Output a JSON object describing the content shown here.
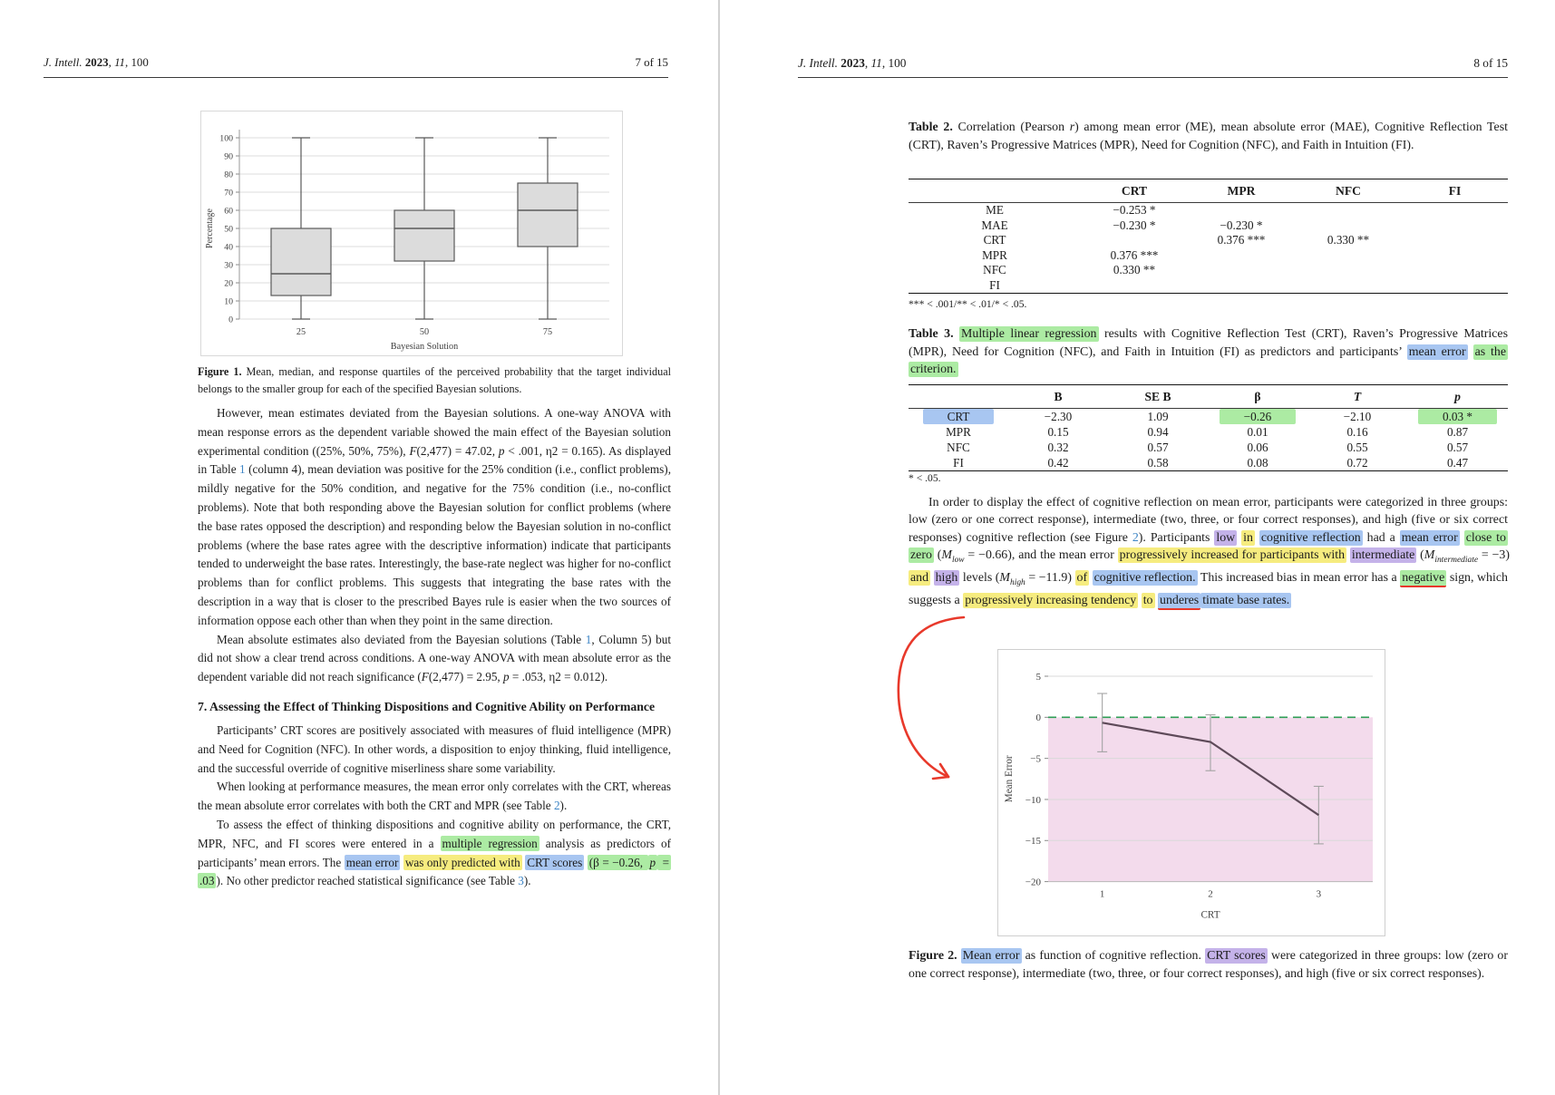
{
  "colors": {
    "highlight_yellow": "#F6EC7F",
    "highlight_green": "#ACEBA3",
    "highlight_blue": "#A8C6F1",
    "highlight_purple": "#C4B2E9",
    "annotation_red": "#E8392B",
    "link_blue": "#3D85C6"
  },
  "left": {
    "header": {
      "journal": [
        {
          "t": "J. Intell. ",
          "s": "i"
        },
        {
          "t": "2023",
          "s": "b"
        },
        ", ",
        {
          "t": "11",
          "s": "i"
        },
        ", 100"
      ],
      "page_label": "7 of 15"
    },
    "figure1_caption": [
      {
        "t": "Figure 1.",
        "s": "b"
      },
      " Mean, median, and response quartiles of the perceived probability that the target individual belongs to the smaller group for each of the specified Bayesian solutions."
    ],
    "para1": [
      "However, mean estimates deviated from the Bayesian solutions. A one-way ANOVA with mean response errors as the dependent variable showed the main effect of the Bayesian solution experimental condition ((25%, 50%, 75%), ",
      {
        "t": "F",
        "s": "i"
      },
      "(2,477) = 47.02, ",
      {
        "t": "p",
        "s": "i"
      },
      " < .001, η2 = 0.165). As displayed in Table ",
      {
        "t": "1",
        "s": "link"
      },
      " (column 4), mean deviation was positive for the 25% condition (i.e., conflict problems), mildly negative for the 50% condition, and negative for the 75% condition (i.e., no-conflict problems). Note that both responding above the Bayesian solution for conflict problems (where the base rates opposed the description) and responding below the Bayesian solution in no-conflict problems (where the base rates agree with the descriptive information) indicate that participants tended to underweight the base rates. Interestingly, the base-rate neglect was higher for no-conflict problems than for conflict problems. This suggests that integrating the base rates with the description in a way that is closer to the prescribed Bayes rule is easier when the two sources of information oppose each other than when they point in the same direction."
    ],
    "para2": [
      "Mean absolute estimates also deviated from the Bayesian solutions (Table ",
      {
        "t": "1",
        "s": "link"
      },
      ", Column 5) but did not show a clear trend across conditions. A one-way ANOVA with mean absolute error as the dependent variable did not reach significance (",
      {
        "t": "F",
        "s": "i"
      },
      "(2,477) = 2.95, ",
      {
        "t": "p",
        "s": "i"
      },
      " = .053, η2 = 0.012)."
    ],
    "section_heading": "7. Assessing the Effect of Thinking Dispositions and Cognitive Ability on Performance",
    "para3": [
      "Participants’ CRT scores are positively associated with measures of fluid intelligence (MPR) and Need for Cognition (NFC). In other words, a disposition to enjoy thinking, fluid intelligence, and the successful override of cognitive miserliness share some variability."
    ],
    "para4": [
      "When looking at performance measures, the mean error only correlates with the CRT, whereas the mean absolute error correlates with both the CRT and MPR (see Table ",
      {
        "t": "2",
        "s": "link"
      },
      ")."
    ],
    "para5": [
      "To assess the effect of thinking dispositions and cognitive ability on performance, the CRT, MPR, NFC, and FI scores were entered in a ",
      {
        "t": "multiple regression",
        "s": "g"
      },
      " analysis as predictors of participants’ mean errors. The ",
      {
        "t": "mean error",
        "s": "bl"
      },
      " ",
      {
        "t": "was only predicted with",
        "s": "y"
      },
      " ",
      {
        "t": "CRT scores",
        "s": "bl"
      },
      " ",
      {
        "t": "(β = −0.26, ",
        "s": "g"
      },
      {
        "t": "p",
        "s": "g i"
      },
      {
        "t": " = .03",
        "s": "g"
      },
      "). No other predictor reached statistical significance (see Table ",
      {
        "t": "3",
        "s": "link"
      },
      ")."
    ]
  },
  "right": {
    "header": {
      "journal": [
        {
          "t": "J. Intell. ",
          "s": "i"
        },
        {
          "t": "2023",
          "s": "b"
        },
        ", ",
        {
          "t": "11",
          "s": "i"
        },
        ", 100"
      ],
      "page_label": "8 of 15"
    },
    "table2_caption": [
      {
        "t": "Table 2.",
        "s": "b"
      },
      " Correlation (Pearson ",
      {
        "t": "r",
        "s": "i"
      },
      ") among mean error (ME), mean absolute error (MAE), Cognitive Reflection Test (CRT), Raven’s Progressive Matrices (MPR), Need for Cognition (NFC), and Faith in Intuition (FI)."
    ],
    "table2": {
      "headers": [
        "",
        "CRT",
        "MPR",
        "NFC",
        "FI"
      ],
      "rows": [
        [
          "ME",
          "−0.253 *",
          "",
          "",
          ""
        ],
        [
          "MAE",
          "−0.230 *",
          "−0.230 *",
          "",
          ""
        ],
        [
          "CRT",
          "",
          "0.376 ***",
          "0.330 **",
          ""
        ],
        [
          "MPR",
          "0.376 ***",
          "",
          "",
          ""
        ],
        [
          "NFC",
          "0.330 **",
          "",
          "",
          ""
        ],
        [
          "FI",
          "",
          "",
          "",
          ""
        ]
      ],
      "footnote": "*** < .001/** < .01/* < .05."
    },
    "table3_caption": [
      {
        "t": "Table 3.",
        "s": "b"
      },
      " ",
      {
        "t": "Multiple linear regression",
        "s": "g"
      },
      " results with Cognitive Reflection Test (CRT), Raven’s Progressive Matrices (MPR), Need for Cognition (NFC), and Faith in Intuition (FI) as predictors and participants’ ",
      {
        "t": "mean error",
        "s": "bl"
      },
      " ",
      {
        "t": "as the criterion.",
        "s": "g"
      }
    ],
    "table3": {
      "headers": [
        "",
        {
          "t": "B",
          "s": "b"
        },
        {
          "t": "SE B",
          "s": "b"
        },
        {
          "t": "β",
          "s": "b"
        },
        {
          "t": "T",
          "s": "b i"
        },
        {
          "t": "p",
          "s": "b i"
        }
      ],
      "rows": [
        [
          {
            "t": "CRT",
            "s": "bl wide"
          },
          "−2.30",
          "1.09",
          {
            "t": "−0.26",
            "s": "g wide"
          },
          "−2.10",
          {
            "t": "0.03 *",
            "s": "g wide"
          }
        ],
        [
          "MPR",
          "0.15",
          "0.94",
          "0.01",
          "0.16",
          "0.87"
        ],
        [
          "NFC",
          "0.32",
          "0.57",
          "0.06",
          "0.55",
          "0.57"
        ],
        [
          "FI",
          "0.42",
          "0.58",
          "0.08",
          "0.72",
          "0.47"
        ]
      ],
      "footnote": "* < .05."
    },
    "para": [
      "In order to display the effect of cognitive reflection on mean error, participants were categorized in three groups: low (zero or one correct response), intermediate (two, three, or four correct responses), and high (five or six correct responses) cognitive reflection (see Figure ",
      {
        "t": "2",
        "s": "link"
      },
      ").  Participants ",
      {
        "t": "low",
        "s": "pu"
      },
      " ",
      {
        "t": "in",
        "s": "y"
      },
      " ",
      {
        "t": "cognitive reflection",
        "s": "bl"
      },
      " had a ",
      {
        "t": "mean error",
        "s": "bl"
      },
      " ",
      {
        "t": "close to zero",
        "s": "g"
      },
      " (",
      {
        "t": "M",
        "s": "i"
      },
      {
        "t": "low",
        "s": "sub"
      },
      " = −0.66), and the mean error ",
      {
        "t": "progressively increased for participants with",
        "s": "y"
      },
      " ",
      {
        "t": "intermediate",
        "s": "pu"
      },
      " (",
      {
        "t": "M",
        "s": "i"
      },
      {
        "t": "intermediate",
        "s": "sub"
      },
      " = −3) ",
      {
        "t": "and",
        "s": "y"
      },
      " ",
      {
        "t": "high",
        "s": "pu"
      },
      " levels (",
      {
        "t": "M",
        "s": "i"
      },
      {
        "t": "high",
        "s": "sub"
      },
      " = −11.9) ",
      {
        "t": "of",
        "s": "y"
      },
      " ",
      {
        "t": "cognitive reflection.",
        "s": "bl"
      },
      " This increased bias in mean error has a ",
      {
        "t": "negative",
        "s": "g rl"
      },
      " sign, which suggests a ",
      {
        "t": "progressively increasing tendency",
        "s": "y"
      },
      " ",
      {
        "t": "to",
        "s": "y"
      },
      " ",
      {
        "t": "underes",
        "s": "bl rl"
      },
      {
        "t": "timate base rates.",
        "s": "bl"
      }
    ],
    "figure2_caption": [
      {
        "t": "Figure 2.",
        "s": "b"
      },
      " ",
      {
        "t": "Mean error",
        "s": "bl"
      },
      " as function of cognitive reflection. ",
      {
        "t": "CRT scores",
        "s": "pu"
      },
      " were categorized in three groups: low (zero or one correct response), intermediate (two, three, or four correct responses), and high (five or six correct responses)."
    ]
  },
  "chart_data": [
    {
      "type": "boxplot",
      "title": "",
      "xlabel": "Bayesian Solution",
      "ylabel": "Percentage",
      "categories": [
        "25",
        "50",
        "75"
      ],
      "ylim": [
        0,
        100
      ],
      "yticks": [
        0,
        10,
        20,
        30,
        40,
        50,
        60,
        70,
        80,
        90,
        100
      ],
      "grid": true,
      "boxes": [
        {
          "whisker_low": 0,
          "q1": 13,
          "median": 25,
          "q3": 50,
          "whisker_high": 100
        },
        {
          "whisker_low": 0,
          "q1": 32,
          "median": 50,
          "q3": 60,
          "whisker_high": 100
        },
        {
          "whisker_low": 0,
          "q1": 40,
          "median": 60,
          "q3": 75,
          "whisker_high": 100
        }
      ],
      "box_fill": "#DCDCDC",
      "box_stroke": "#595959"
    },
    {
      "type": "line",
      "title": "",
      "xlabel": "CRT",
      "ylabel": "Mean Error",
      "x": [
        1,
        2,
        3
      ],
      "ylim": [
        -20,
        5
      ],
      "yticks": [
        5,
        0,
        -5,
        -10,
        -15,
        -20
      ],
      "grid": true,
      "legend": false,
      "series": [
        {
          "name": "Mean error",
          "values": [
            -0.66,
            -3,
            -11.9
          ],
          "error_high": [
            2.9,
            0.3,
            -8.4
          ],
          "error_low": [
            -4.2,
            -6.5,
            -15.4
          ]
        }
      ],
      "zero_line": {
        "y": 0,
        "style": "dashed",
        "color": "#2F9E55"
      },
      "shaded_region": {
        "from": 0,
        "to": -20,
        "color": "#F3DBEC"
      },
      "line_color": "#5E4A59",
      "error_bar_color": "#A3A3A3"
    }
  ]
}
